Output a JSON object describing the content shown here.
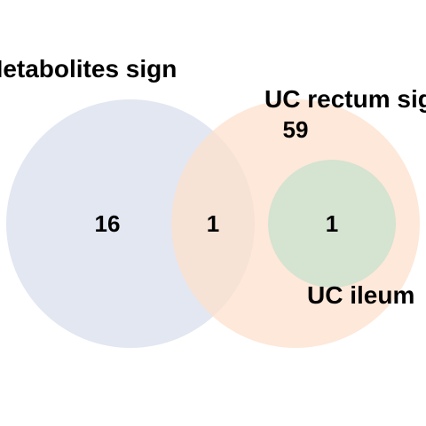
{
  "diagram": {
    "type": "venn",
    "sets": [
      {
        "id": "metabolites",
        "label": "Metabolites sign",
        "color": "#dde3f0"
      },
      {
        "id": "rectum",
        "label": "UC rectum sig",
        "color": "#fde0cc"
      },
      {
        "id": "ileum",
        "label": "UC ileum",
        "color": "#d5e3d1"
      }
    ],
    "regions": {
      "metabolites_only": "16",
      "metabolites_rectum": "1",
      "rectum_only": "59",
      "ileum_in_rectum": "1"
    }
  }
}
